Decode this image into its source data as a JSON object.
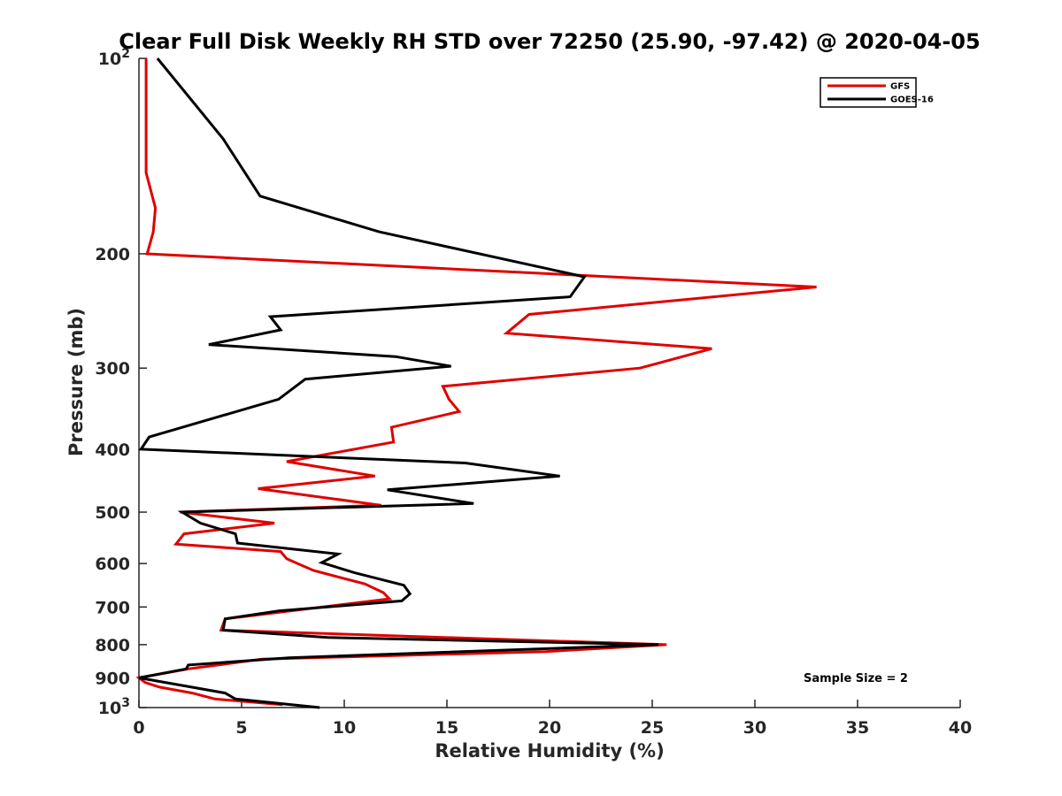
{
  "chart_data": {
    "type": "line",
    "title": "Clear Full Disk Weekly RH STD over 72250 (25.90, -97.42) @ 2020-04-05",
    "xlabel": "Relative Humidity (%)",
    "ylabel": "Pressure (mb)",
    "xlim": [
      0,
      40
    ],
    "ylim": [
      100,
      1000
    ],
    "yscale": "log",
    "y_reversed": true,
    "x_ticks": [
      "0",
      "5",
      "10",
      "15",
      "20",
      "25",
      "30",
      "35",
      "40"
    ],
    "y_ticks": [
      {
        "value": 100,
        "label": "10",
        "sup": "2"
      },
      {
        "value": 200,
        "label": "200",
        "sup": ""
      },
      {
        "value": 300,
        "label": "300",
        "sup": ""
      },
      {
        "value": 400,
        "label": "400",
        "sup": ""
      },
      {
        "value": 500,
        "label": "500",
        "sup": ""
      },
      {
        "value": 600,
        "label": "600",
        "sup": ""
      },
      {
        "value": 700,
        "label": "700",
        "sup": ""
      },
      {
        "value": 800,
        "label": "800",
        "sup": ""
      },
      {
        "value": 900,
        "label": "900",
        "sup": ""
      },
      {
        "value": 1000,
        "label": "10",
        "sup": "3"
      }
    ],
    "grid": false,
    "legend_position": "top-right",
    "annotation": "Sample Size = 2",
    "series": [
      {
        "name": "GFS",
        "color": "#e00000",
        "points": [
          [
            0.35,
            100
          ],
          [
            0.35,
            150
          ],
          [
            0.8,
            170
          ],
          [
            0.7,
            185
          ],
          [
            0.4,
            200
          ],
          [
            33.0,
            225
          ],
          [
            19.0,
            248
          ],
          [
            17.9,
            265
          ],
          [
            27.9,
            280
          ],
          [
            24.4,
            300
          ],
          [
            14.8,
            320
          ],
          [
            15.1,
            335
          ],
          [
            15.6,
            350
          ],
          [
            12.3,
            370
          ],
          [
            12.4,
            390
          ],
          [
            7.2,
            418
          ],
          [
            11.5,
            440
          ],
          [
            5.8,
            460
          ],
          [
            11.8,
            488
          ],
          [
            2.0,
            500
          ],
          [
            6.6,
            520
          ],
          [
            2.2,
            540
          ],
          [
            1.8,
            560
          ],
          [
            6.9,
            575
          ],
          [
            7.2,
            590
          ],
          [
            8.5,
            615
          ],
          [
            11.0,
            645
          ],
          [
            11.9,
            665
          ],
          [
            12.2,
            680
          ],
          [
            4.2,
            730
          ],
          [
            4.0,
            760
          ],
          [
            25.7,
            800
          ],
          [
            19.8,
            820
          ],
          [
            6.0,
            842
          ],
          [
            2.4,
            872
          ],
          [
            0.0,
            900
          ],
          [
            0.3,
            915
          ],
          [
            1.0,
            930
          ],
          [
            2.6,
            950
          ],
          [
            3.7,
            970
          ],
          [
            7.0,
            990
          ]
        ]
      },
      {
        "name": "GOES-16",
        "color": "#000000",
        "points": [
          [
            0.9,
            100
          ],
          [
            4.1,
            133
          ],
          [
            5.9,
            163
          ],
          [
            11.7,
            185
          ],
          [
            21.7,
            217
          ],
          [
            21.0,
            233
          ],
          [
            6.4,
            250
          ],
          [
            6.9,
            262
          ],
          [
            3.4,
            276
          ],
          [
            12.5,
            288
          ],
          [
            15.2,
            298
          ],
          [
            8.1,
            312
          ],
          [
            6.8,
            335
          ],
          [
            0.5,
            383
          ],
          [
            0.1,
            400
          ],
          [
            15.9,
            420
          ],
          [
            20.5,
            440
          ],
          [
            12.1,
            462
          ],
          [
            16.3,
            485
          ],
          [
            2.1,
            500
          ],
          [
            3.0,
            520
          ],
          [
            4.7,
            540
          ],
          [
            4.8,
            558
          ],
          [
            9.7,
            580
          ],
          [
            8.9,
            598
          ],
          [
            10.5,
            620
          ],
          [
            12.9,
            648
          ],
          [
            13.2,
            668
          ],
          [
            12.8,
            685
          ],
          [
            6.8,
            710
          ],
          [
            4.2,
            730
          ],
          [
            4.1,
            760
          ],
          [
            9.2,
            780
          ],
          [
            25.3,
            800
          ],
          [
            7.3,
            838
          ],
          [
            2.4,
            860
          ],
          [
            2.3,
            872
          ],
          [
            0.0,
            900
          ],
          [
            4.2,
            950
          ],
          [
            4.7,
            970
          ],
          [
            8.8,
            1000
          ]
        ]
      }
    ]
  }
}
